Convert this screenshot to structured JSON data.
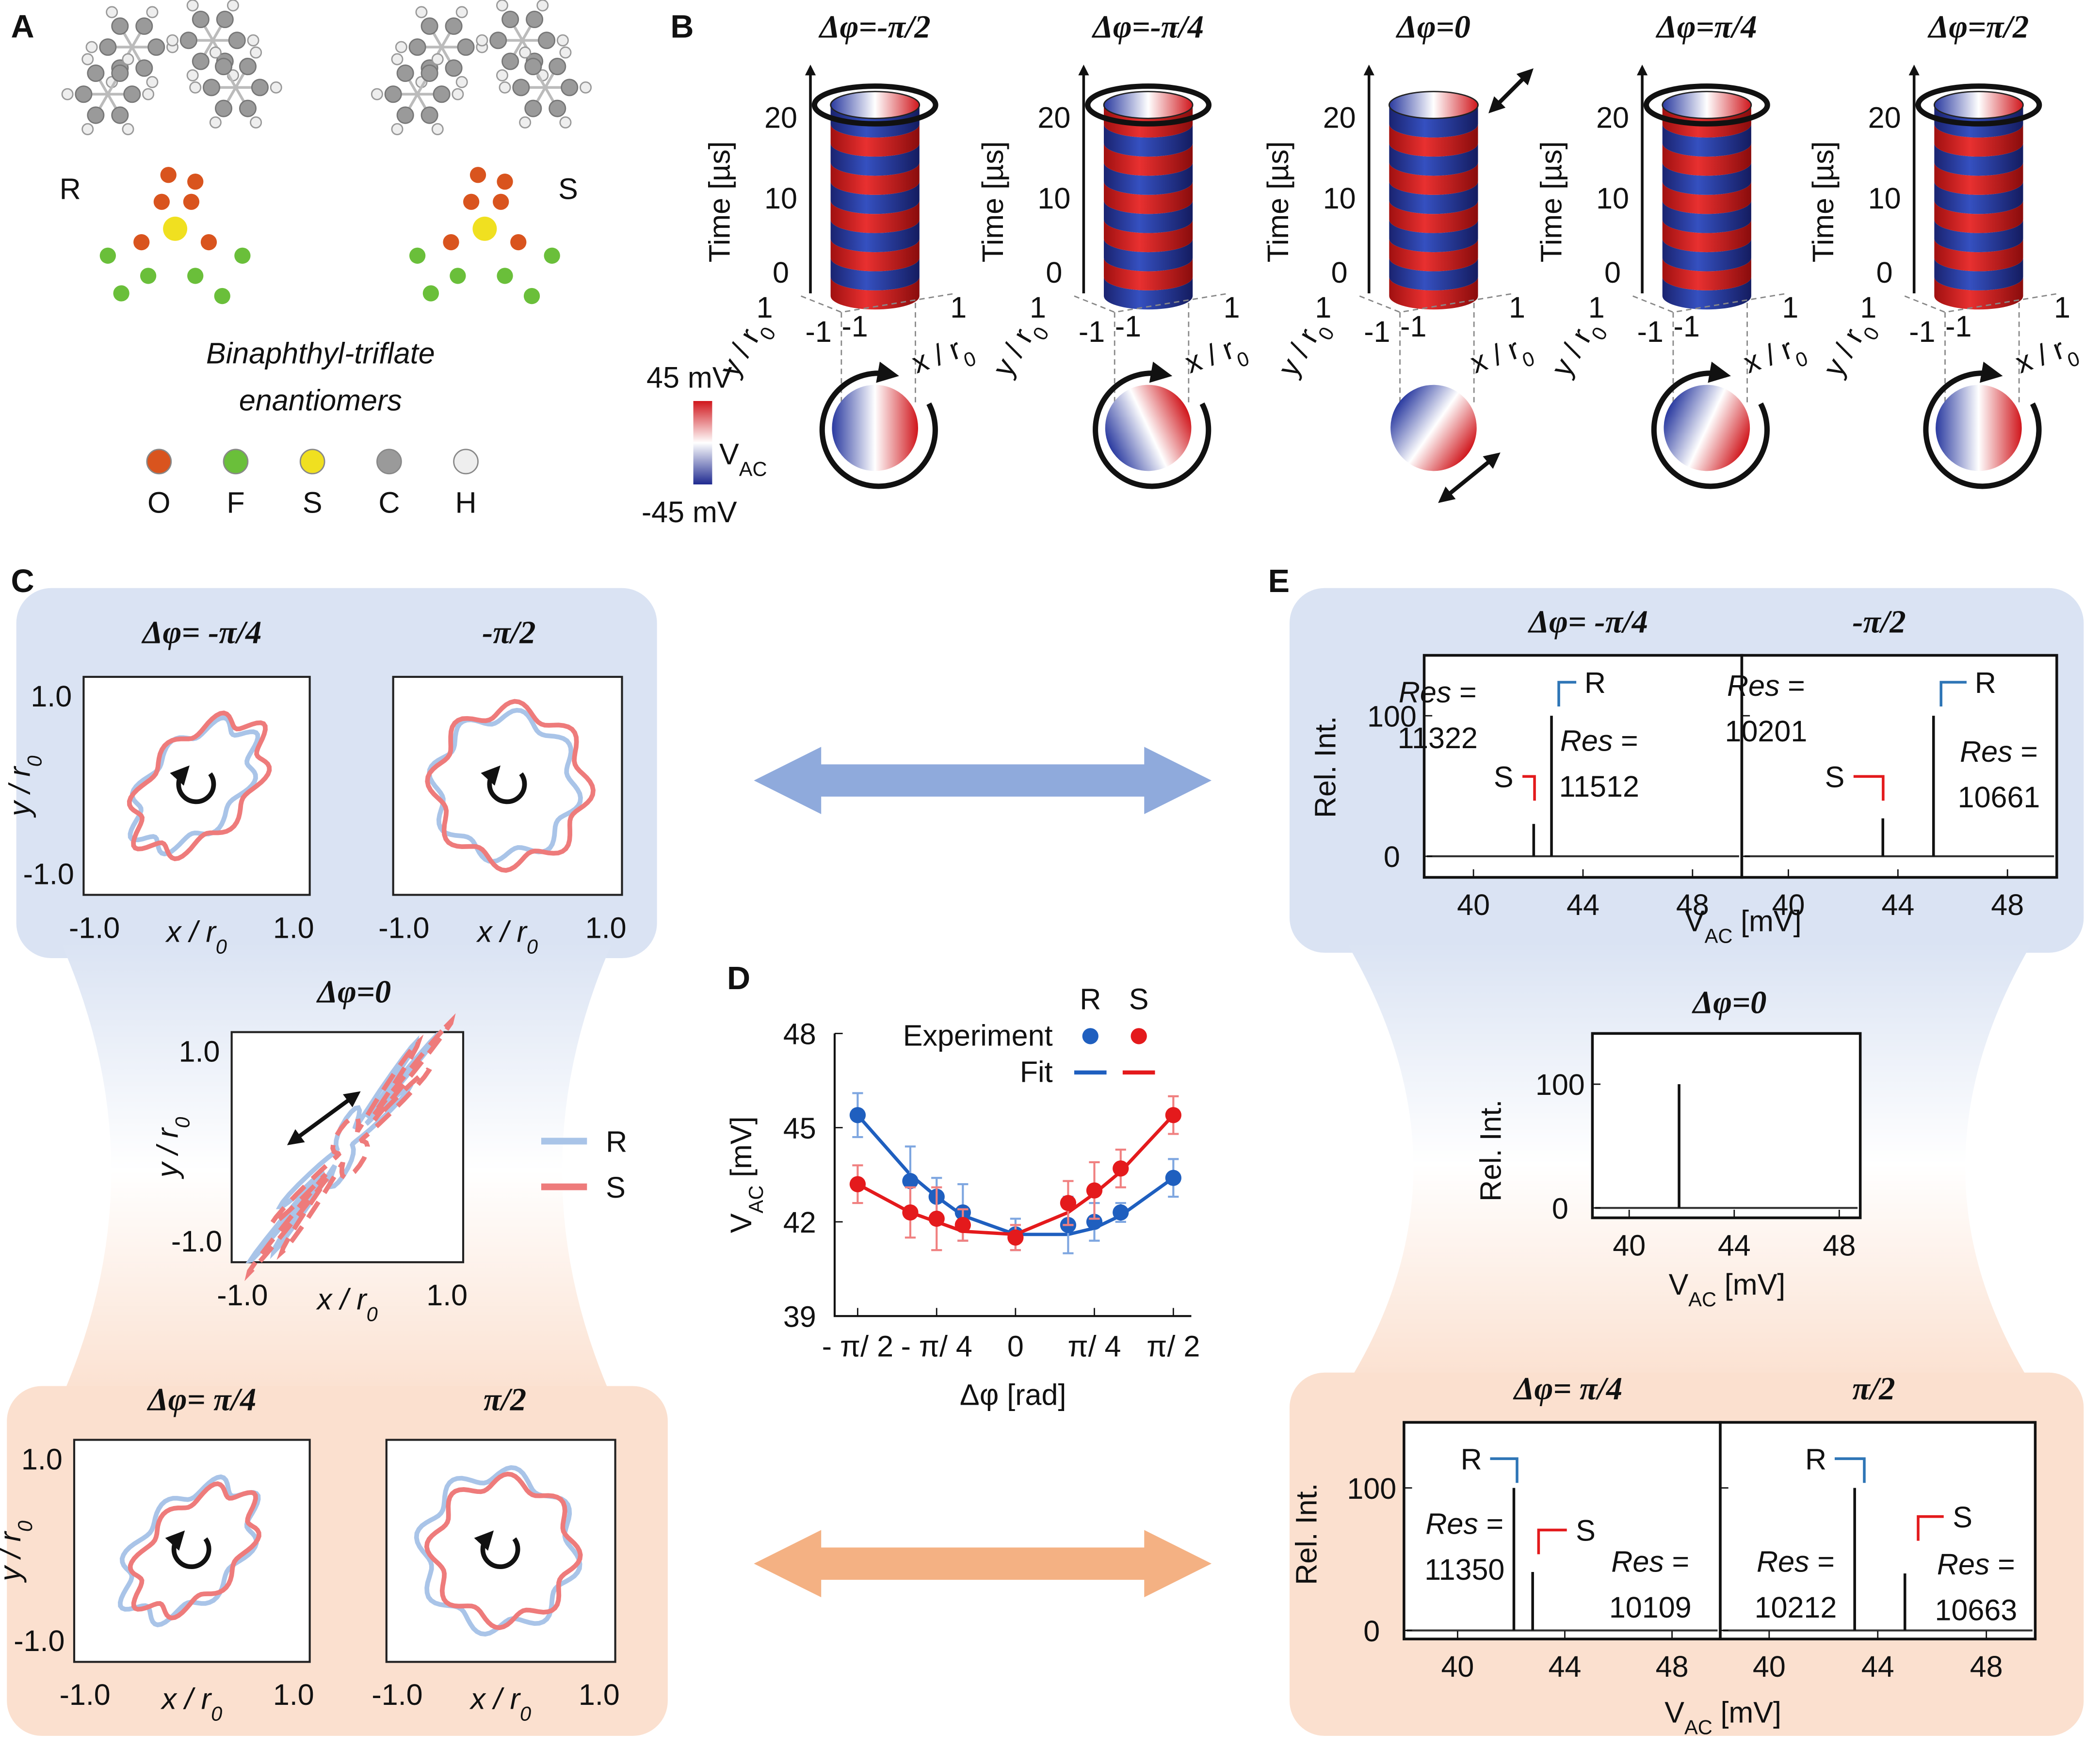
{
  "panel_labels": {
    "a": "A",
    "b": "B",
    "c": "C",
    "d": "D",
    "e": "E"
  },
  "panel_a": {
    "enantiomers": [
      "R",
      "S"
    ],
    "caption": [
      "Binaphthyl-triflate",
      "enantiomers"
    ],
    "elements": [
      {
        "symbol": "O",
        "color": "#d9541e"
      },
      {
        "symbol": "F",
        "color": "#6abf3a"
      },
      {
        "symbol": "S",
        "color": "#f0e020"
      },
      {
        "symbol": "C",
        "color": "#9a9a9a"
      },
      {
        "symbol": "H",
        "color": "#eeeeee"
      }
    ]
  },
  "panel_b": {
    "titles": [
      "Δφ=-π/2",
      "Δφ=-π/4",
      "Δφ=0",
      "Δφ=π/4",
      "Δφ=π/2"
    ],
    "time_label": "Time [µs]",
    "time_ticks": [
      0,
      10,
      20
    ],
    "xy_ticks": [
      -1,
      1
    ],
    "y_axis": {
      "main": "y / r",
      "sub": "0"
    },
    "x_axis": {
      "main": "x / r",
      "sub": "0"
    },
    "colorbar": {
      "max": "45 mV",
      "min": "-45 mV",
      "label": {
        "main": "V",
        "sub": "AC"
      }
    }
  },
  "panel_c": {
    "titles": [
      "Δφ= -π/4",
      "-π/2",
      "Δφ=0",
      "Δφ= π/4",
      "π/2"
    ],
    "ticks": [
      "-1.0",
      "1.0"
    ],
    "x_axis": {
      "main": "x / r",
      "sub": "0"
    },
    "y_axis": {
      "main": "y / r",
      "sub": "0"
    },
    "legend": [
      {
        "name": "R",
        "color": "#a9c4e8"
      },
      {
        "name": "S",
        "color": "#ee7b7b"
      }
    ]
  },
  "chart_data": {
    "type": "scatter",
    "x": [
      -1.571,
      -1.047,
      -0.785,
      -0.524,
      0,
      0.524,
      0.785,
      1.047,
      1.571
    ],
    "series": [
      {
        "name": "R",
        "color": "#1f5fbf",
        "values": [
          45.4,
          43.3,
          42.8,
          42.3,
          41.6,
          41.9,
          42.0,
          42.3,
          43.4
        ],
        "errors": [
          0.7,
          1.1,
          0.6,
          0.9,
          0.5,
          0.9,
          0.6,
          0.3,
          0.6
        ],
        "fit": [
          45.4,
          43.5,
          42.8,
          42.2,
          41.6,
          41.6,
          41.8,
          42.2,
          43.4
        ]
      },
      {
        "name": "S",
        "color": "#e41a1c",
        "values": [
          43.2,
          42.3,
          42.1,
          41.9,
          41.5,
          42.6,
          43.0,
          43.7,
          45.4
        ],
        "errors": [
          0.6,
          0.8,
          1.0,
          0.5,
          0.4,
          0.7,
          0.9,
          0.6,
          0.6
        ],
        "fit": [
          43.2,
          42.3,
          42.0,
          41.7,
          41.6,
          42.3,
          42.9,
          43.6,
          45.4
        ]
      }
    ],
    "xlim": [
      -1.8,
      1.75
    ],
    "ylim": [
      39,
      48
    ],
    "xticks": [
      {
        "value": -1.571,
        "label": "- π/ 2"
      },
      {
        "value": -0.785,
        "label": "- π/ 4"
      },
      0,
      {
        "value": 0.785,
        "label": "π/ 4"
      },
      {
        "value": 1.571,
        "label": "π/ 2"
      }
    ],
    "yticks": [
      39,
      42,
      45,
      48
    ],
    "x_label": "Δφ [rad]",
    "y_label": {
      "main": "V",
      "sub": "AC",
      "unit": "[mV]"
    },
    "legend": {
      "rows": [
        "Experiment",
        "Fit"
      ]
    }
  },
  "panel_e": {
    "y_label": "Rel. Int.",
    "x_label": {
      "main": "V",
      "sub": "AC",
      "unit": "[mV]"
    },
    "res_label": {
      "word": "Res",
      "sign": "="
    },
    "spectra": [
      {
        "title": "Δφ= -π/4",
        "xlim": [
          38.2,
          49.8
        ],
        "ylim": [
          -15,
          143
        ],
        "xticks": [
          40,
          44,
          48
        ],
        "yticks": [
          0,
          100
        ],
        "peaks": [
          {
            "name": "R",
            "color": "#2e75b6",
            "x": 42.85,
            "height": 100
          },
          {
            "name": "S",
            "color": "#e31a1c",
            "x": 42.2,
            "height": 23
          }
        ],
        "res": [
          11322,
          11512
        ]
      },
      {
        "title": "-π/2",
        "xlim": [
          38.3,
          49.8
        ],
        "ylim": [
          -15,
          143
        ],
        "xticks": [
          40,
          44,
          48
        ],
        "yticks": [
          0,
          100
        ],
        "peaks": [
          {
            "name": "R",
            "color": "#2e75b6",
            "x": 45.3,
            "height": 100
          },
          {
            "name": "S",
            "color": "#e31a1c",
            "x": 43.45,
            "height": 27
          }
        ],
        "res": [
          10201,
          10661
        ]
      },
      {
        "title": "Δφ=0",
        "xlim": [
          38.6,
          48.8
        ],
        "ylim": [
          -8,
          141
        ],
        "xticks": [
          40,
          44,
          48
        ],
        "yticks": [
          0,
          100
        ],
        "peaks": [
          {
            "x": 41.9,
            "height": 100
          }
        ],
        "res": []
      },
      {
        "title": "Δφ= π/4",
        "xlim": [
          38,
          49.8
        ],
        "ylim": [
          -6,
          146
        ],
        "xticks": [
          40,
          44,
          48
        ],
        "yticks": [
          0,
          100
        ],
        "peaks": [
          {
            "name": "R",
            "color": "#2e75b6",
            "x": 42.1,
            "height": 100
          },
          {
            "name": "S",
            "color": "#e31a1c",
            "x": 42.8,
            "height": 41
          }
        ],
        "res": [
          11350,
          10109
        ]
      },
      {
        "title": "π/2",
        "xlim": [
          38.2,
          49.8
        ],
        "ylim": [
          -6,
          146
        ],
        "xticks": [
          40,
          44,
          48
        ],
        "yticks": [
          0,
          100
        ],
        "peaks": [
          {
            "name": "R",
            "color": "#2e75b6",
            "x": 43.15,
            "height": 100
          },
          {
            "name": "S",
            "color": "#e31a1c",
            "x": 45.0,
            "height": 40
          }
        ],
        "res": [
          10212,
          10663
        ]
      }
    ]
  }
}
